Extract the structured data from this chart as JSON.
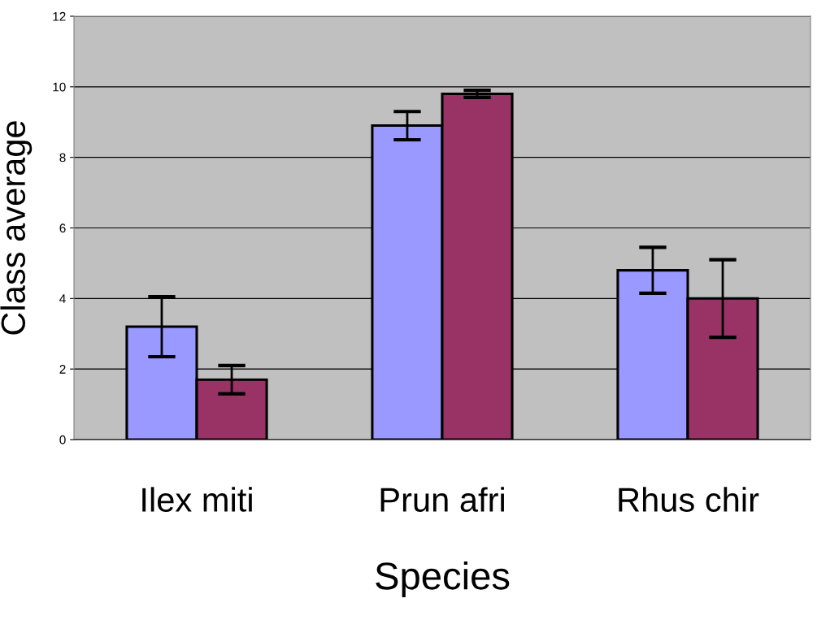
{
  "chart_data": {
    "type": "bar",
    "xlabel": "Species",
    "ylabel": "Class average",
    "categories": [
      "Ilex miti",
      "Prun afri",
      "Rhus chir"
    ],
    "series": [
      {
        "color": "#9999ff",
        "values": [
          3.2,
          8.9,
          4.8
        ],
        "errors": [
          0.85,
          0.4,
          0.65
        ]
      },
      {
        "color": "#993366",
        "values": [
          1.7,
          9.8,
          4.0
        ],
        "errors": [
          0.4,
          0.1,
          1.1
        ]
      }
    ],
    "ylim": [
      0,
      12
    ],
    "yticks": [
      0,
      2,
      4,
      6,
      8,
      10,
      12
    ],
    "grid": "y",
    "legend": false
  }
}
